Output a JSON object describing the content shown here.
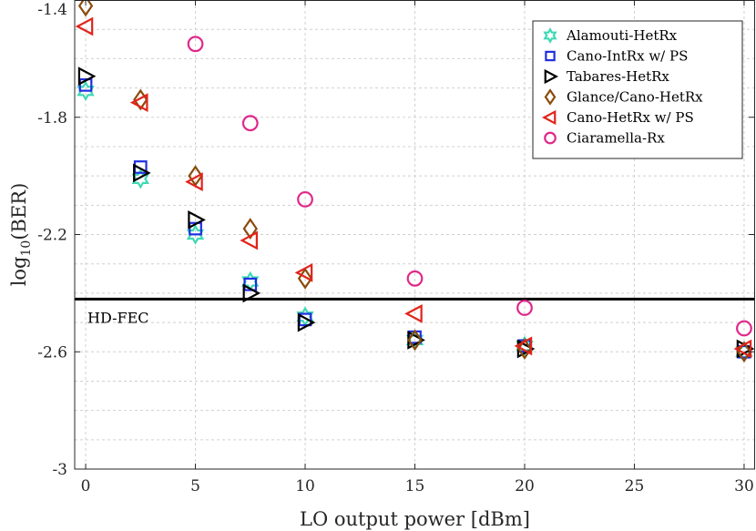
{
  "chart_data": {
    "type": "scatter",
    "xlabel": "LO output power [dBm]",
    "ylabel_main": "log",
    "ylabel_sub": "10",
    "ylabel_rest": "(BER)",
    "xlim": [
      -0.5,
      30.5
    ],
    "ylim": [
      -3.0,
      -1.4
    ],
    "xticks": [
      0,
      5,
      10,
      15,
      20,
      25,
      30
    ],
    "xtick_labels": [
      "0",
      "5",
      "10",
      "15",
      "20",
      "25",
      "30"
    ],
    "yticks": [
      -1.4,
      -1.8,
      -2.2,
      -2.6,
      -3.0
    ],
    "ytick_labels": [
      "-1.4",
      "-1.8",
      "-2.2",
      "-2.6",
      "-3"
    ],
    "grid": true,
    "legend_position": "top-right",
    "threshold": {
      "label": "HD-FEC",
      "y": -2.42,
      "color": "#000000"
    },
    "series": [
      {
        "name": "Alamouti-HetRx",
        "marker": "hexagram",
        "color": "#3fd9b4",
        "x": [
          0,
          2.5,
          5,
          7.5,
          10,
          15,
          20,
          30
        ],
        "y": [
          -1.71,
          -2.01,
          -2.2,
          -2.36,
          -2.48,
          -2.56,
          -2.58,
          -2.6
        ]
      },
      {
        "name": "Cano-IntRx w/ PS",
        "marker": "square",
        "color": "#1f2fe0",
        "x": [
          0,
          2.5,
          5,
          7.5,
          10,
          15,
          20,
          30
        ],
        "y": [
          -1.69,
          -1.97,
          -2.18,
          -2.37,
          -2.49,
          -2.55,
          -2.58,
          -2.6
        ]
      },
      {
        "name": "Tabares-HetRx",
        "marker": "triangle-right",
        "color": "#000000",
        "x": [
          0,
          2.5,
          5,
          7.5,
          10,
          15,
          20,
          30
        ],
        "y": [
          -1.66,
          -1.99,
          -2.15,
          -2.4,
          -2.5,
          -2.56,
          -2.59,
          -2.59
        ]
      },
      {
        "name": "Glance/Cano-HetRx",
        "marker": "diamond",
        "color": "#8b4a0a",
        "x": [
          0,
          2.5,
          5,
          7.5,
          10,
          15,
          20,
          30
        ],
        "y": [
          -1.42,
          -1.74,
          -2.0,
          -2.18,
          -2.35,
          -2.56,
          -2.59,
          -2.6
        ]
      },
      {
        "name": "Cano-HetRx w/ PS",
        "marker": "triangle-left",
        "color": "#e2231a",
        "x": [
          0,
          2.5,
          5,
          7.5,
          10,
          15,
          20,
          30
        ],
        "y": [
          -1.49,
          -1.75,
          -2.02,
          -2.22,
          -2.33,
          -2.47,
          -2.58,
          -2.59
        ]
      },
      {
        "name": "Ciaramella-Rx",
        "marker": "circle",
        "color": "#e0288a",
        "x": [
          5,
          7.5,
          10,
          15,
          20,
          30
        ],
        "y": [
          -1.55,
          -1.82,
          -2.08,
          -2.35,
          -2.45,
          -2.52
        ]
      }
    ]
  }
}
